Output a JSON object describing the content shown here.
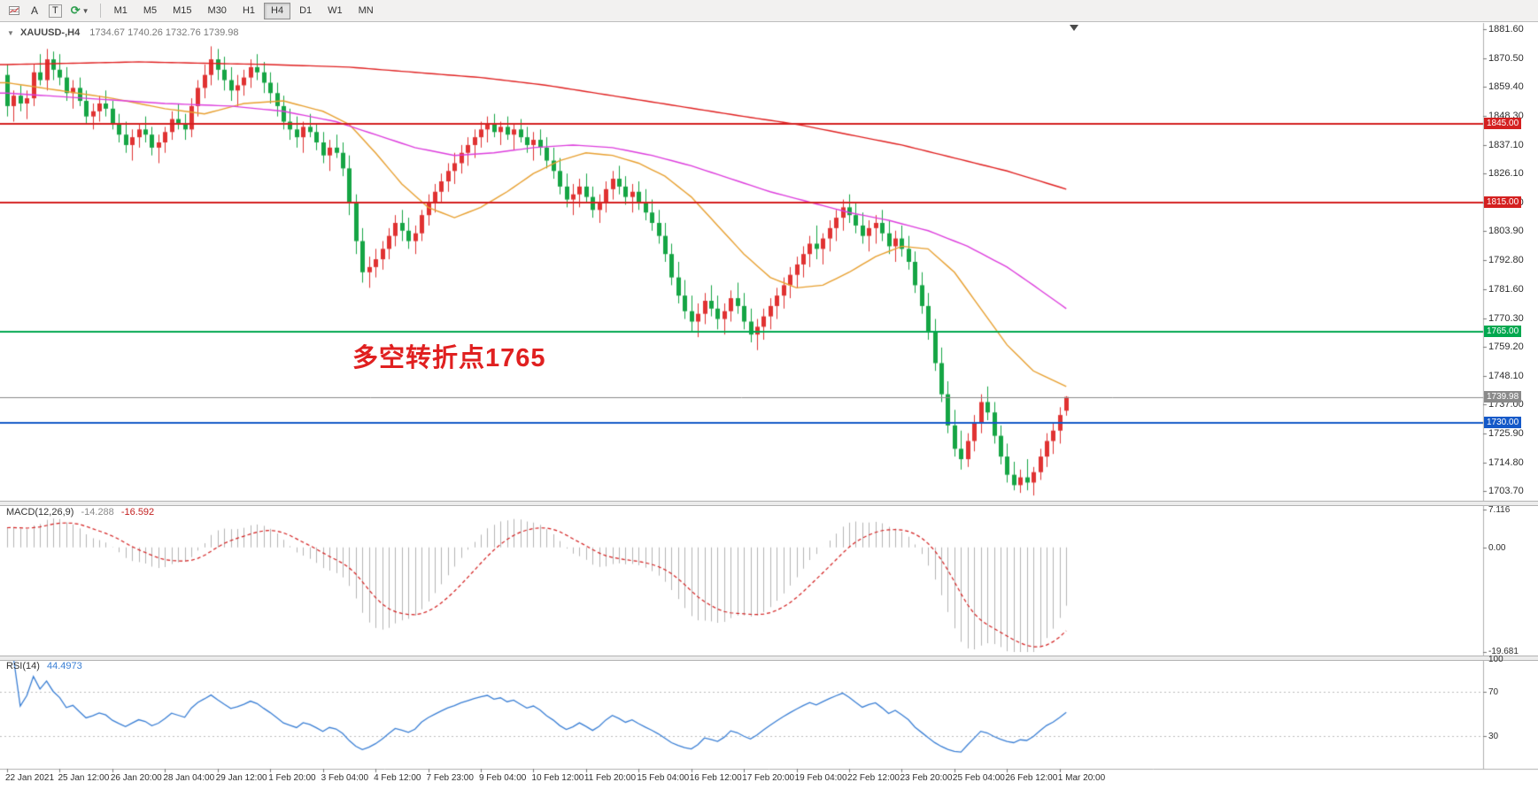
{
  "toolbar": {
    "tools": {
      "font": "A",
      "text": "T"
    },
    "timeframes": [
      "M1",
      "M5",
      "M15",
      "M30",
      "H1",
      "H4",
      "D1",
      "W1",
      "MN"
    ],
    "active_timeframe": "H4"
  },
  "chart": {
    "collapse_icon": "▼",
    "symbol": "XAUUSD-,H4",
    "ohlc": "1734.67 1740.26 1732.76 1739.98",
    "annotation": {
      "text": "多空转折点1765",
      "color": "#e02020"
    },
    "levels": [
      {
        "label": "1845.00",
        "value": 1845.0,
        "color": "#d42020",
        "width": 2
      },
      {
        "label": "1815.00",
        "value": 1815.0,
        "color": "#d42020",
        "width": 2
      },
      {
        "label": "1765.00",
        "value": 1765.0,
        "color": "#00a84f",
        "width": 2
      },
      {
        "label": "1739.98",
        "value": 1739.98,
        "color": "#8a8a8a",
        "width": 1
      },
      {
        "label": "1730.00",
        "value": 1730.0,
        "color": "#1459c8",
        "width": 2
      }
    ],
    "price_axis_ticks": [
      "1881.60",
      "1870.50",
      "1859.40",
      "1848.30",
      "1837.10",
      "1826.10",
      "1815.00",
      "1803.90",
      "1792.80",
      "1781.60",
      "1770.30",
      "1759.20",
      "1748.10",
      "1737.00",
      "1725.90",
      "1714.80",
      "1703.70"
    ]
  },
  "time_axis": {
    "labels": [
      "22 Jan 2021",
      "25 Jan 12:00",
      "26 Jan 20:00",
      "28 Jan 04:00",
      "29 Jan 12:00",
      "1 Feb 20:00",
      "3 Feb 04:00",
      "4 Feb 12:00",
      "7 Feb 23:00",
      "9 Feb 04:00",
      "10 Feb 12:00",
      "11 Feb 20:00",
      "15 Feb 04:00",
      "16 Feb 12:00",
      "17 Feb 20:00",
      "19 Feb 04:00",
      "22 Feb 12:00",
      "23 Feb 20:00",
      "25 Feb 04:00",
      "26 Feb 12:00",
      "1 Mar 20:00"
    ]
  },
  "macd": {
    "name": "MACD(12,26,9)",
    "main_value": "-14.288",
    "signal_value": "-16.592",
    "axis_labels": [
      "7.116",
      "0.00",
      "-19.681"
    ],
    "range_max": 7.116,
    "range_min": -19.681,
    "histogram_color": "#b4b4b4",
    "signal_color": "#d42020"
  },
  "rsi": {
    "name": "RSI(14)",
    "value": "44.4973",
    "axis_labels": [
      "100",
      "70",
      "30"
    ],
    "axis_values": [
      100,
      70,
      30
    ],
    "level_values": [
      70,
      30
    ],
    "line_color": "#3a7fd5"
  },
  "chart_data": {
    "type": "candlestick",
    "symbol": "XAUUSD-",
    "timeframe": "H4",
    "up_color": "#e03232",
    "down_color": "#15a544",
    "y_range": [
      1700,
      1884
    ],
    "last_ohlc": {
      "open": 1734.67,
      "high": 1740.26,
      "low": 1732.76,
      "close": 1739.98
    },
    "candles": [
      [
        1864,
        1868,
        1848,
        1852
      ],
      [
        1852,
        1858,
        1846,
        1856
      ],
      [
        1856,
        1860,
        1850,
        1853
      ],
      [
        1853,
        1858,
        1847,
        1855
      ],
      [
        1855,
        1868,
        1852,
        1865
      ],
      [
        1865,
        1872,
        1860,
        1862
      ],
      [
        1862,
        1874,
        1858,
        1870
      ],
      [
        1870,
        1873,
        1862,
        1866
      ],
      [
        1866,
        1872,
        1860,
        1863
      ],
      [
        1863,
        1867,
        1854,
        1857
      ],
      [
        1857,
        1862,
        1851,
        1859
      ],
      [
        1859,
        1863,
        1852,
        1854
      ],
      [
        1854,
        1858,
        1845,
        1848
      ],
      [
        1848,
        1853,
        1843,
        1850
      ],
      [
        1850,
        1856,
        1846,
        1853
      ],
      [
        1853,
        1858,
        1848,
        1851
      ],
      [
        1851,
        1854,
        1843,
        1845
      ],
      [
        1845,
        1849,
        1838,
        1841
      ],
      [
        1841,
        1846,
        1834,
        1837
      ],
      [
        1837,
        1843,
        1831,
        1840
      ],
      [
        1840,
        1845,
        1836,
        1843
      ],
      [
        1843,
        1848,
        1838,
        1841
      ],
      [
        1841,
        1844,
        1833,
        1836
      ],
      [
        1836,
        1841,
        1830,
        1838
      ],
      [
        1838,
        1844,
        1834,
        1842
      ],
      [
        1842,
        1850,
        1839,
        1847
      ],
      [
        1847,
        1853,
        1843,
        1845
      ],
      [
        1845,
        1849,
        1839,
        1843
      ],
      [
        1843,
        1855,
        1840,
        1852
      ],
      [
        1852,
        1862,
        1848,
        1859
      ],
      [
        1859,
        1868,
        1855,
        1864
      ],
      [
        1864,
        1875,
        1860,
        1870
      ],
      [
        1870,
        1874,
        1862,
        1866
      ],
      [
        1866,
        1871,
        1858,
        1862
      ],
      [
        1862,
        1867,
        1854,
        1858
      ],
      [
        1858,
        1864,
        1852,
        1860
      ],
      [
        1860,
        1866,
        1856,
        1863
      ],
      [
        1863,
        1870,
        1859,
        1867
      ],
      [
        1867,
        1872,
        1862,
        1865
      ],
      [
        1865,
        1869,
        1857,
        1861
      ],
      [
        1861,
        1865,
        1853,
        1857
      ],
      [
        1857,
        1861,
        1848,
        1852
      ],
      [
        1852,
        1856,
        1843,
        1846
      ],
      [
        1846,
        1851,
        1839,
        1843
      ],
      [
        1843,
        1848,
        1836,
        1840
      ],
      [
        1840,
        1846,
        1834,
        1844
      ],
      [
        1844,
        1849,
        1840,
        1842
      ],
      [
        1842,
        1845,
        1835,
        1838
      ],
      [
        1838,
        1842,
        1830,
        1833
      ],
      [
        1833,
        1839,
        1827,
        1836
      ],
      [
        1836,
        1841,
        1832,
        1834
      ],
      [
        1834,
        1838,
        1825,
        1828
      ],
      [
        1828,
        1833,
        1810,
        1815
      ],
      [
        1815,
        1818,
        1795,
        1800
      ],
      [
        1800,
        1805,
        1784,
        1788
      ],
      [
        1788,
        1794,
        1782,
        1790
      ],
      [
        1790,
        1797,
        1786,
        1793
      ],
      [
        1793,
        1800,
        1789,
        1797
      ],
      [
        1797,
        1805,
        1793,
        1802
      ],
      [
        1802,
        1810,
        1798,
        1807
      ],
      [
        1807,
        1812,
        1800,
        1804
      ],
      [
        1804,
        1809,
        1797,
        1800
      ],
      [
        1800,
        1806,
        1795,
        1803
      ],
      [
        1803,
        1812,
        1800,
        1810
      ],
      [
        1810,
        1818,
        1806,
        1815
      ],
      [
        1815,
        1822,
        1811,
        1819
      ],
      [
        1819,
        1826,
        1815,
        1823
      ],
      [
        1823,
        1830,
        1819,
        1827
      ],
      [
        1827,
        1834,
        1822,
        1830
      ],
      [
        1830,
        1837,
        1826,
        1834
      ],
      [
        1834,
        1840,
        1829,
        1837
      ],
      [
        1837,
        1843,
        1832,
        1840
      ],
      [
        1840,
        1846,
        1836,
        1843
      ],
      [
        1843,
        1848,
        1838,
        1845
      ],
      [
        1845,
        1849,
        1840,
        1842
      ],
      [
        1842,
        1846,
        1837,
        1844
      ],
      [
        1844,
        1848,
        1839,
        1841
      ],
      [
        1841,
        1845,
        1835,
        1843
      ],
      [
        1843,
        1847,
        1838,
        1840
      ],
      [
        1840,
        1844,
        1834,
        1837
      ],
      [
        1837,
        1842,
        1831,
        1839
      ],
      [
        1839,
        1843,
        1833,
        1836
      ],
      [
        1836,
        1840,
        1828,
        1831
      ],
      [
        1831,
        1836,
        1824,
        1827
      ],
      [
        1827,
        1832,
        1818,
        1821
      ],
      [
        1821,
        1826,
        1813,
        1816
      ],
      [
        1816,
        1822,
        1810,
        1818
      ],
      [
        1818,
        1824,
        1813,
        1821
      ],
      [
        1821,
        1826,
        1815,
        1817
      ],
      [
        1817,
        1821,
        1809,
        1812
      ],
      [
        1812,
        1818,
        1807,
        1815
      ],
      [
        1815,
        1823,
        1811,
        1820
      ],
      [
        1820,
        1827,
        1816,
        1824
      ],
      [
        1824,
        1829,
        1818,
        1821
      ],
      [
        1821,
        1825,
        1814,
        1817
      ],
      [
        1817,
        1822,
        1811,
        1819
      ],
      [
        1819,
        1823,
        1812,
        1815
      ],
      [
        1815,
        1820,
        1808,
        1811
      ],
      [
        1811,
        1816,
        1804,
        1807
      ],
      [
        1807,
        1812,
        1799,
        1802
      ],
      [
        1802,
        1807,
        1792,
        1795
      ],
      [
        1795,
        1799,
        1783,
        1786
      ],
      [
        1786,
        1792,
        1776,
        1779
      ],
      [
        1779,
        1785,
        1770,
        1773
      ],
      [
        1773,
        1779,
        1765,
        1769
      ],
      [
        1769,
        1776,
        1763,
        1772
      ],
      [
        1772,
        1780,
        1768,
        1777
      ],
      [
        1777,
        1783,
        1771,
        1774
      ],
      [
        1774,
        1779,
        1766,
        1770
      ],
      [
        1770,
        1776,
        1764,
        1773
      ],
      [
        1773,
        1781,
        1769,
        1778
      ],
      [
        1778,
        1784,
        1772,
        1775
      ],
      [
        1775,
        1780,
        1766,
        1769
      ],
      [
        1769,
        1774,
        1761,
        1764
      ],
      [
        1764,
        1770,
        1758,
        1767
      ],
      [
        1767,
        1774,
        1762,
        1771
      ],
      [
        1771,
        1778,
        1766,
        1775
      ],
      [
        1775,
        1782,
        1770,
        1779
      ],
      [
        1779,
        1786,
        1774,
        1783
      ],
      [
        1783,
        1790,
        1778,
        1787
      ],
      [
        1787,
        1794,
        1782,
        1791
      ],
      [
        1791,
        1798,
        1786,
        1795
      ],
      [
        1795,
        1802,
        1790,
        1799
      ],
      [
        1799,
        1806,
        1793,
        1797
      ],
      [
        1797,
        1803,
        1791,
        1801
      ],
      [
        1801,
        1808,
        1796,
        1805
      ],
      [
        1805,
        1812,
        1800,
        1809
      ],
      [
        1809,
        1816,
        1804,
        1813
      ],
      [
        1813,
        1818,
        1807,
        1810
      ],
      [
        1810,
        1815,
        1803,
        1806
      ],
      [
        1806,
        1811,
        1799,
        1802
      ],
      [
        1802,
        1808,
        1796,
        1805
      ],
      [
        1805,
        1810,
        1799,
        1807
      ],
      [
        1807,
        1812,
        1800,
        1803
      ],
      [
        1803,
        1808,
        1795,
        1798
      ],
      [
        1798,
        1804,
        1792,
        1801
      ],
      [
        1801,
        1806,
        1794,
        1797
      ],
      [
        1797,
        1802,
        1789,
        1792
      ],
      [
        1792,
        1796,
        1780,
        1783
      ],
      [
        1783,
        1788,
        1772,
        1775
      ],
      [
        1775,
        1780,
        1762,
        1765
      ],
      [
        1765,
        1770,
        1750,
        1753
      ],
      [
        1753,
        1759,
        1738,
        1741
      ],
      [
        1741,
        1746,
        1726,
        1729
      ],
      [
        1729,
        1735,
        1717,
        1720
      ],
      [
        1720,
        1727,
        1712,
        1716
      ],
      [
        1716,
        1726,
        1713,
        1723
      ],
      [
        1723,
        1733,
        1719,
        1730
      ],
      [
        1730,
        1741,
        1726,
        1738
      ],
      [
        1738,
        1744,
        1731,
        1734
      ],
      [
        1734,
        1738,
        1722,
        1725
      ],
      [
        1725,
        1729,
        1714,
        1717
      ],
      [
        1717,
        1722,
        1707,
        1710
      ],
      [
        1710,
        1715,
        1704,
        1706
      ],
      [
        1706,
        1712,
        1703,
        1709
      ],
      [
        1709,
        1716,
        1704,
        1707
      ],
      [
        1707,
        1713,
        1702,
        1711
      ],
      [
        1711,
        1720,
        1708,
        1717
      ],
      [
        1717,
        1726,
        1713,
        1723
      ],
      [
        1723,
        1730,
        1718,
        1727
      ],
      [
        1727,
        1736,
        1722,
        1733
      ],
      [
        1734.67,
        1740.26,
        1732.76,
        1739.98
      ]
    ],
    "overlays": [
      {
        "name": "mid-term-ma",
        "color": "#e8a030",
        "points": [
          [
            0,
            1861
          ],
          [
            8,
            1858
          ],
          [
            16,
            1855
          ],
          [
            24,
            1851
          ],
          [
            30,
            1849
          ],
          [
            36,
            1853
          ],
          [
            42,
            1854
          ],
          [
            48,
            1850
          ],
          [
            52,
            1845
          ],
          [
            56,
            1834
          ],
          [
            60,
            1822
          ],
          [
            64,
            1813
          ],
          [
            68,
            1809
          ],
          [
            72,
            1813
          ],
          [
            76,
            1819
          ],
          [
            80,
            1826
          ],
          [
            84,
            1831
          ],
          [
            88,
            1834
          ],
          [
            92,
            1833
          ],
          [
            96,
            1830
          ],
          [
            100,
            1825
          ],
          [
            104,
            1817
          ],
          [
            108,
            1806
          ],
          [
            112,
            1795
          ],
          [
            116,
            1786
          ],
          [
            120,
            1782
          ],
          [
            124,
            1783
          ],
          [
            128,
            1788
          ],
          [
            132,
            1794
          ],
          [
            136,
            1798
          ],
          [
            140,
            1797
          ],
          [
            144,
            1788
          ],
          [
            148,
            1774
          ],
          [
            152,
            1760
          ],
          [
            156,
            1750
          ],
          [
            161,
            1744
          ]
        ]
      },
      {
        "name": "slow-ma",
        "color": "#dd3ddd",
        "points": [
          [
            0,
            1857
          ],
          [
            12,
            1855
          ],
          [
            24,
            1853
          ],
          [
            34,
            1852
          ],
          [
            42,
            1850
          ],
          [
            50,
            1846
          ],
          [
            56,
            1841
          ],
          [
            62,
            1836
          ],
          [
            68,
            1833
          ],
          [
            74,
            1834
          ],
          [
            80,
            1836
          ],
          [
            86,
            1837
          ],
          [
            92,
            1836
          ],
          [
            98,
            1833
          ],
          [
            104,
            1829
          ],
          [
            110,
            1824
          ],
          [
            116,
            1819
          ],
          [
            122,
            1815
          ],
          [
            128,
            1811
          ],
          [
            134,
            1808
          ],
          [
            140,
            1804
          ],
          [
            146,
            1798
          ],
          [
            152,
            1790
          ],
          [
            156,
            1783
          ],
          [
            161,
            1774
          ]
        ]
      },
      {
        "name": "long-term-ma",
        "color": "#e02020",
        "points": [
          [
            0,
            1868
          ],
          [
            20,
            1869
          ],
          [
            40,
            1868
          ],
          [
            52,
            1867
          ],
          [
            62,
            1865
          ],
          [
            72,
            1863
          ],
          [
            82,
            1860
          ],
          [
            92,
            1856
          ],
          [
            102,
            1852
          ],
          [
            112,
            1848
          ],
          [
            120,
            1845
          ],
          [
            128,
            1841
          ],
          [
            136,
            1837
          ],
          [
            144,
            1832
          ],
          [
            152,
            1827
          ],
          [
            161,
            1820
          ]
        ]
      }
    ]
  }
}
